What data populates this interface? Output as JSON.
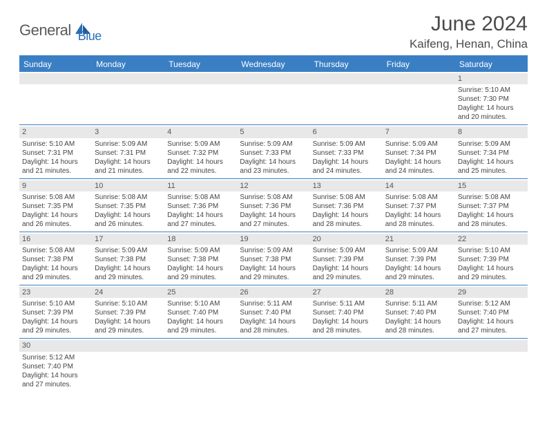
{
  "brand": {
    "part1": "General",
    "part2": "Blue"
  },
  "title": "June 2024",
  "location": "Kaifeng, Henan, China",
  "colors": {
    "header_bg": "#3a7fc4",
    "header_text": "#ffffff",
    "body_text": "#444444",
    "daynum_bg": "#e8e8e8",
    "divider": "#3a7fc4",
    "logo_gray": "#5a5a5a",
    "logo_blue": "#2a6fb5"
  },
  "weekdays": [
    "Sunday",
    "Monday",
    "Tuesday",
    "Wednesday",
    "Thursday",
    "Friday",
    "Saturday"
  ],
  "weeks": [
    [
      null,
      null,
      null,
      null,
      null,
      null,
      {
        "d": "1",
        "sr": "5:10 AM",
        "ss": "7:30 PM",
        "dl1": "14 hours",
        "dl2": "and 20 minutes."
      }
    ],
    [
      {
        "d": "2",
        "sr": "5:10 AM",
        "ss": "7:31 PM",
        "dl1": "14 hours",
        "dl2": "and 21 minutes."
      },
      {
        "d": "3",
        "sr": "5:09 AM",
        "ss": "7:31 PM",
        "dl1": "14 hours",
        "dl2": "and 21 minutes."
      },
      {
        "d": "4",
        "sr": "5:09 AM",
        "ss": "7:32 PM",
        "dl1": "14 hours",
        "dl2": "and 22 minutes."
      },
      {
        "d": "5",
        "sr": "5:09 AM",
        "ss": "7:33 PM",
        "dl1": "14 hours",
        "dl2": "and 23 minutes."
      },
      {
        "d": "6",
        "sr": "5:09 AM",
        "ss": "7:33 PM",
        "dl1": "14 hours",
        "dl2": "and 24 minutes."
      },
      {
        "d": "7",
        "sr": "5:09 AM",
        "ss": "7:34 PM",
        "dl1": "14 hours",
        "dl2": "and 24 minutes."
      },
      {
        "d": "8",
        "sr": "5:09 AM",
        "ss": "7:34 PM",
        "dl1": "14 hours",
        "dl2": "and 25 minutes."
      }
    ],
    [
      {
        "d": "9",
        "sr": "5:08 AM",
        "ss": "7:35 PM",
        "dl1": "14 hours",
        "dl2": "and 26 minutes."
      },
      {
        "d": "10",
        "sr": "5:08 AM",
        "ss": "7:35 PM",
        "dl1": "14 hours",
        "dl2": "and 26 minutes."
      },
      {
        "d": "11",
        "sr": "5:08 AM",
        "ss": "7:36 PM",
        "dl1": "14 hours",
        "dl2": "and 27 minutes."
      },
      {
        "d": "12",
        "sr": "5:08 AM",
        "ss": "7:36 PM",
        "dl1": "14 hours",
        "dl2": "and 27 minutes."
      },
      {
        "d": "13",
        "sr": "5:08 AM",
        "ss": "7:36 PM",
        "dl1": "14 hours",
        "dl2": "and 28 minutes."
      },
      {
        "d": "14",
        "sr": "5:08 AM",
        "ss": "7:37 PM",
        "dl1": "14 hours",
        "dl2": "and 28 minutes."
      },
      {
        "d": "15",
        "sr": "5:08 AM",
        "ss": "7:37 PM",
        "dl1": "14 hours",
        "dl2": "and 28 minutes."
      }
    ],
    [
      {
        "d": "16",
        "sr": "5:08 AM",
        "ss": "7:38 PM",
        "dl1": "14 hours",
        "dl2": "and 29 minutes."
      },
      {
        "d": "17",
        "sr": "5:09 AM",
        "ss": "7:38 PM",
        "dl1": "14 hours",
        "dl2": "and 29 minutes."
      },
      {
        "d": "18",
        "sr": "5:09 AM",
        "ss": "7:38 PM",
        "dl1": "14 hours",
        "dl2": "and 29 minutes."
      },
      {
        "d": "19",
        "sr": "5:09 AM",
        "ss": "7:38 PM",
        "dl1": "14 hours",
        "dl2": "and 29 minutes."
      },
      {
        "d": "20",
        "sr": "5:09 AM",
        "ss": "7:39 PM",
        "dl1": "14 hours",
        "dl2": "and 29 minutes."
      },
      {
        "d": "21",
        "sr": "5:09 AM",
        "ss": "7:39 PM",
        "dl1": "14 hours",
        "dl2": "and 29 minutes."
      },
      {
        "d": "22",
        "sr": "5:10 AM",
        "ss": "7:39 PM",
        "dl1": "14 hours",
        "dl2": "and 29 minutes."
      }
    ],
    [
      {
        "d": "23",
        "sr": "5:10 AM",
        "ss": "7:39 PM",
        "dl1": "14 hours",
        "dl2": "and 29 minutes."
      },
      {
        "d": "24",
        "sr": "5:10 AM",
        "ss": "7:39 PM",
        "dl1": "14 hours",
        "dl2": "and 29 minutes."
      },
      {
        "d": "25",
        "sr": "5:10 AM",
        "ss": "7:40 PM",
        "dl1": "14 hours",
        "dl2": "and 29 minutes."
      },
      {
        "d": "26",
        "sr": "5:11 AM",
        "ss": "7:40 PM",
        "dl1": "14 hours",
        "dl2": "and 28 minutes."
      },
      {
        "d": "27",
        "sr": "5:11 AM",
        "ss": "7:40 PM",
        "dl1": "14 hours",
        "dl2": "and 28 minutes."
      },
      {
        "d": "28",
        "sr": "5:11 AM",
        "ss": "7:40 PM",
        "dl1": "14 hours",
        "dl2": "and 28 minutes."
      },
      {
        "d": "29",
        "sr": "5:12 AM",
        "ss": "7:40 PM",
        "dl1": "14 hours",
        "dl2": "and 27 minutes."
      }
    ],
    [
      {
        "d": "30",
        "sr": "5:12 AM",
        "ss": "7:40 PM",
        "dl1": "14 hours",
        "dl2": "and 27 minutes."
      },
      null,
      null,
      null,
      null,
      null,
      null
    ]
  ],
  "labels": {
    "sunrise": "Sunrise: ",
    "sunset": "Sunset: ",
    "daylight": "Daylight: "
  }
}
